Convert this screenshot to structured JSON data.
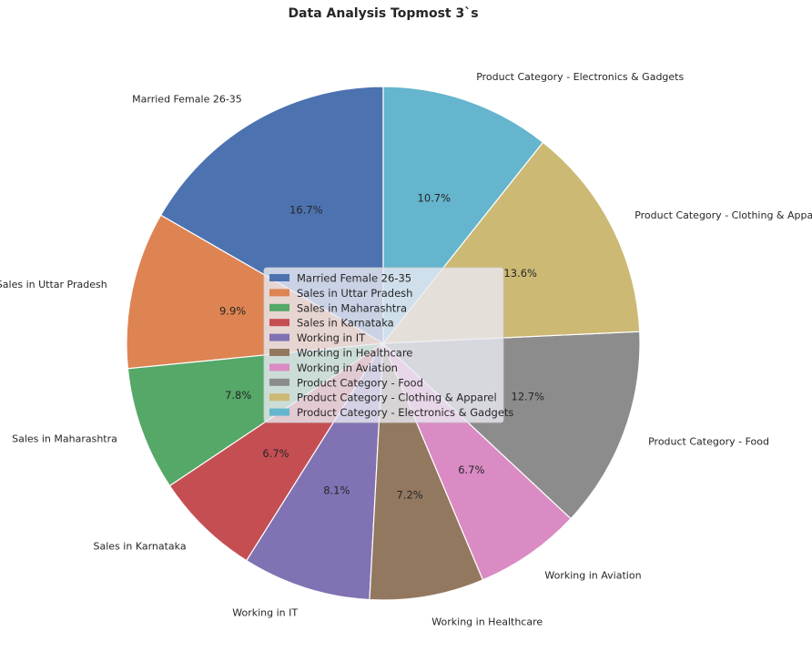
{
  "chart_data": {
    "type": "pie",
    "title": "Data Analysis Topmost 3`s",
    "categories": [
      "Married Female 26-35",
      "Sales in Uttar Pradesh",
      "Sales in Maharashtra",
      "Sales in Karnataka",
      "Working in IT",
      "Working in Healthcare",
      "Working in Aviation",
      "Product Category - Food",
      "Product Category - Clothing & Apparel",
      "Product Category - Electronics & Gadgets"
    ],
    "values": [
      16.7,
      9.9,
      7.8,
      6.7,
      8.1,
      7.2,
      6.7,
      12.7,
      13.6,
      10.7
    ],
    "value_labels": [
      "16.7%",
      "9.9%",
      "7.8%",
      "6.7%",
      "8.1%",
      "7.2%",
      "6.7%",
      "12.7%",
      "13.6%",
      "10.7%"
    ],
    "colors": [
      "#4c72b0",
      "#dd8452",
      "#55a868",
      "#c44e52",
      "#8172b3",
      "#937860",
      "#da8bc3",
      "#8c8c8c",
      "#ccb974",
      "#64b5cd"
    ],
    "start_angle_deg": 90,
    "direction": "counterclockwise",
    "legend": {
      "placement": "center",
      "entries": [
        "Married Female 26-35",
        "Sales in Uttar Pradesh",
        "Sales in Maharashtra",
        "Sales in Karnataka",
        "Working in IT",
        "Working in Healthcare",
        "Working in Aviation",
        "Product Category - Food",
        "Product Category - Clothing & Apparel",
        "Product Category - Electronics & Gadgets"
      ]
    }
  }
}
